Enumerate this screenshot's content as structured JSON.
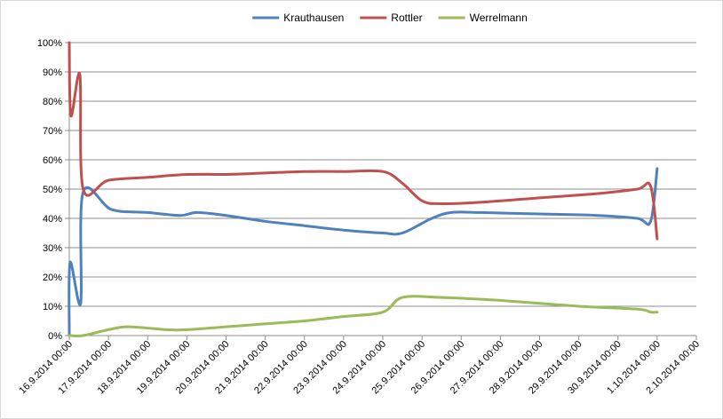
{
  "chart_data": {
    "type": "line",
    "title": "",
    "xlabel": "",
    "ylabel": "",
    "x_tick_labels": [
      "16.9.2014 00:00",
      "17.9.2014 00:00",
      "18.9.2014 00:00",
      "19.9.2014 00:00",
      "20.9.2014 00:00",
      "21.9.2014 00:00",
      "22.9.2014 00:00",
      "23.9.2014 00:00",
      "24.9.2014 00:00",
      "25.9.2014 00:00",
      "26.9.2014 00:00",
      "27.9.2014 00:00",
      "28.9.2014 00:00",
      "29.9.2014 00:00",
      "30.9.2014 00:00",
      "1.10.2014 00:00",
      "2.10.2014 00:00"
    ],
    "y_tick_labels": [
      "0%",
      "10%",
      "20%",
      "30%",
      "40%",
      "50%",
      "60%",
      "70%",
      "80%",
      "90%",
      "100%"
    ],
    "ylim": [
      0,
      100
    ],
    "grid": "horizontal",
    "legend_position": "top",
    "series": [
      {
        "name": "Krauthausen",
        "color": "#4f81bd",
        "points": [
          [
            "16.9.2014 00:00",
            0
          ],
          [
            "16.9.2014 00:30",
            25
          ],
          [
            "16.9.2014 07:00",
            11
          ],
          [
            "16.9.2014 08:30",
            49
          ],
          [
            "17.9.2014 02:00",
            43
          ],
          [
            "18.9.2014 00:00",
            42
          ],
          [
            "18.9.2014 20:00",
            41
          ],
          [
            "19.9.2014 06:00",
            42
          ],
          [
            "20.9.2014 00:00",
            41
          ],
          [
            "21.9.2014 00:00",
            39
          ],
          [
            "22.9.2014 00:00",
            37.5
          ],
          [
            "23.9.2014 00:00",
            36
          ],
          [
            "24.9.2014 00:00",
            35
          ],
          [
            "24.9.2014 12:00",
            35
          ],
          [
            "25.9.2014 06:00",
            40
          ],
          [
            "25.9.2014 18:00",
            42
          ],
          [
            "26.9.2014 12:00",
            42
          ],
          [
            "28.9.2014 00:00",
            41.5
          ],
          [
            "29.9.2014 12:00",
            41
          ],
          [
            "30.9.2014 12:00",
            40
          ],
          [
            "30.9.2014 20:00",
            39
          ],
          [
            "1.10.2014 00:00",
            57
          ]
        ]
      },
      {
        "name": "Rottler",
        "color": "#c0504d",
        "points": [
          [
            "16.9.2014 00:00",
            100
          ],
          [
            "16.9.2014 01:00",
            75
          ],
          [
            "16.9.2014 06:30",
            89
          ],
          [
            "16.9.2014 08:30",
            50
          ],
          [
            "17.9.2014 00:00",
            53
          ],
          [
            "18.9.2014 00:00",
            54
          ],
          [
            "19.9.2014 00:00",
            55
          ],
          [
            "20.9.2014 00:00",
            55
          ],
          [
            "21.9.2014 00:00",
            55.5
          ],
          [
            "22.9.2014 00:00",
            56
          ],
          [
            "23.9.2014 00:00",
            56
          ],
          [
            "24.9.2014 00:00",
            56
          ],
          [
            "24.9.2014 12:00",
            52
          ],
          [
            "25.9.2014 00:00",
            46
          ],
          [
            "25.9.2014 12:00",
            45
          ],
          [
            "26.9.2014 12:00",
            45.5
          ],
          [
            "28.9.2014 00:00",
            47
          ],
          [
            "29.9.2014 12:00",
            48.5
          ],
          [
            "30.9.2014 12:00",
            50
          ],
          [
            "30.9.2014 20:00",
            51
          ],
          [
            "1.10.2014 00:00",
            33
          ]
        ]
      },
      {
        "name": "Werrelmann",
        "color": "#9bbb59",
        "points": [
          [
            "16.9.2014 00:00",
            0
          ],
          [
            "16.9.2014 08:30",
            0
          ],
          [
            "17.9.2014 00:00",
            2
          ],
          [
            "17.9.2014 12:00",
            3
          ],
          [
            "18.9.2014 12:00",
            2
          ],
          [
            "19.9.2014 00:00",
            2
          ],
          [
            "20.9.2014 00:00",
            3
          ],
          [
            "21.9.2014 00:00",
            4
          ],
          [
            "22.9.2014 00:00",
            5
          ],
          [
            "23.9.2014 00:00",
            6.5
          ],
          [
            "24.9.2014 00:00",
            8
          ],
          [
            "24.9.2014 12:00",
            13
          ],
          [
            "25.9.2014 12:00",
            13
          ],
          [
            "27.9.2014 00:00",
            12
          ],
          [
            "29.9.2014 00:00",
            10
          ],
          [
            "30.9.2014 12:00",
            9
          ],
          [
            "30.9.2014 20:00",
            8
          ],
          [
            "1.10.2014 00:00",
            8
          ]
        ]
      }
    ]
  }
}
